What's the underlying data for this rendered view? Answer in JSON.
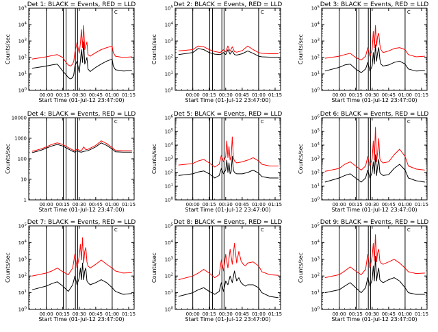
{
  "shared": {
    "x_ticks": [
      "00:00",
      "00:15",
      "00:30",
      "00:45",
      "01:00",
      "01:15"
    ],
    "xlabel": "Start Time (01-Jul-12 23:47:00)",
    "ylabel": "Counts/sec",
    "marker_label": "C",
    "colors": {
      "events": "#000000",
      "lld": "#ff0000",
      "vlines": "#000000"
    }
  },
  "chart_data": [
    {
      "type": "line",
      "title": "Det 1: BLACK = Events, RED = LLD",
      "y_scale": "log",
      "ylim": [
        1,
        100000
      ],
      "y_ticks": [
        {
          "base": "10",
          "exp": "0"
        },
        {
          "base": "10",
          "exp": "1"
        },
        {
          "base": "10",
          "exp": "2"
        },
        {
          "base": "10",
          "exp": "3"
        },
        {
          "base": "10",
          "exp": "4"
        },
        {
          "base": "10",
          "exp": "5"
        }
      ],
      "x_minutes": [
        -13,
        0,
        5,
        10,
        15,
        18,
        20,
        22,
        24,
        25,
        26,
        28,
        30,
        31,
        32,
        33,
        34,
        35,
        36,
        37,
        38,
        40,
        45,
        50,
        55,
        60,
        61,
        63,
        70,
        78
      ],
      "series": [
        {
          "values": [
            22,
            30,
            35,
            40,
            15,
            9,
            6,
            5,
            6,
            9,
            30,
            60,
            12,
            60,
            300,
            50,
            900,
            40,
            60,
            100,
            20,
            14,
            25,
            40,
            60,
            80,
            30,
            18,
            15,
            16
          ]
        },
        {
          "values": [
            80,
            110,
            130,
            150,
            100,
            50,
            35,
            30,
            40,
            60,
            200,
            800,
            180,
            700,
            5000,
            400,
            9000,
            300,
            500,
            900,
            150,
            120,
            200,
            300,
            400,
            500,
            200,
            120,
            100,
            110
          ]
        }
      ]
    },
    {
      "type": "line",
      "title": "Det 2: BLACK = Events, RED = LLD",
      "y_scale": "log",
      "ylim": [
        1,
        100000
      ],
      "y_ticks": [
        {
          "base": "10",
          "exp": "0"
        },
        {
          "base": "10",
          "exp": "1"
        },
        {
          "base": "10",
          "exp": "2"
        },
        {
          "base": "10",
          "exp": "3"
        },
        {
          "base": "10",
          "exp": "4"
        },
        {
          "base": "10",
          "exp": "5"
        }
      ],
      "x_minutes": [
        -13,
        0,
        5,
        10,
        15,
        20,
        25,
        28,
        30,
        32,
        34,
        36,
        38,
        40,
        45,
        50,
        55,
        60,
        63,
        70,
        78
      ],
      "series": [
        {
          "values": [
            150,
            200,
            350,
            300,
            200,
            160,
            150,
            200,
            150,
            300,
            160,
            250,
            150,
            140,
            170,
            250,
            180,
            120,
            110,
            105,
            105
          ]
        },
        {
          "values": [
            250,
            300,
            500,
            450,
            300,
            230,
            200,
            300,
            220,
            500,
            240,
            450,
            230,
            210,
            260,
            500,
            300,
            200,
            180,
            170,
            170
          ]
        }
      ]
    },
    {
      "type": "line",
      "title": "Det 3: BLACK = Events, RED = LLD",
      "y_scale": "log",
      "ylim": [
        1,
        100000
      ],
      "y_ticks": [
        {
          "base": "10",
          "exp": "0"
        },
        {
          "base": "10",
          "exp": "1"
        },
        {
          "base": "10",
          "exp": "2"
        },
        {
          "base": "10",
          "exp": "3"
        },
        {
          "base": "10",
          "exp": "4"
        },
        {
          "base": "10",
          "exp": "5"
        }
      ],
      "x_minutes": [
        -13,
        0,
        5,
        10,
        15,
        20,
        24,
        26,
        28,
        30,
        31,
        32,
        33,
        34,
        35,
        36,
        37,
        38,
        40,
        45,
        50,
        55,
        60,
        63,
        70,
        78
      ],
      "series": [
        {
          "values": [
            15,
            25,
            35,
            40,
            20,
            12,
            20,
            50,
            15,
            30,
            200,
            40,
            600,
            60,
            200,
            400,
            80,
            40,
            30,
            35,
            50,
            60,
            40,
            20,
            15,
            16
          ]
        },
        {
          "values": [
            90,
            120,
            150,
            180,
            100,
            70,
            120,
            400,
            120,
            300,
            4000,
            400,
            9000,
            500,
            2000,
            3000,
            600,
            300,
            200,
            250,
            350,
            400,
            300,
            150,
            110,
            120
          ]
        }
      ]
    },
    {
      "type": "line",
      "title": "Det 4: BLACK = Events, RED = LLD",
      "y_scale": "log",
      "ylim": [
        1,
        10000
      ],
      "y_ticks": [
        {
          "base": "1",
          "exp": ""
        },
        {
          "base": "10",
          "exp": ""
        },
        {
          "base": "100",
          "exp": ""
        },
        {
          "base": "1000",
          "exp": ""
        },
        {
          "base": "10000",
          "exp": ""
        }
      ],
      "x_minutes": [
        -13,
        -5,
        0,
        5,
        10,
        15,
        20,
        24,
        26,
        28,
        30,
        32,
        34,
        36,
        38,
        40,
        45,
        50,
        55,
        60,
        63,
        70,
        78
      ],
      "series": [
        {
          "values": [
            200,
            260,
            330,
            420,
            500,
            420,
            300,
            230,
            210,
            250,
            220,
            210,
            230,
            240,
            250,
            280,
            380,
            600,
            450,
            300,
            220,
            210,
            210
          ]
        },
        {
          "values": [
            230,
            300,
            380,
            500,
            600,
            500,
            350,
            270,
            250,
            300,
            260,
            250,
            380,
            280,
            290,
            330,
            450,
            750,
            550,
            350,
            260,
            250,
            250
          ]
        }
      ]
    },
    {
      "type": "line",
      "title": "Det 5: BLACK = Events, RED = LLD",
      "y_scale": "log",
      "ylim": [
        1,
        1000000
      ],
      "y_ticks": [
        {
          "base": "10",
          "exp": "0"
        },
        {
          "base": "10",
          "exp": "1"
        },
        {
          "base": "10",
          "exp": "2"
        },
        {
          "base": "10",
          "exp": "3"
        },
        {
          "base": "10",
          "exp": "4"
        },
        {
          "base": "10",
          "exp": "5"
        },
        {
          "base": "10",
          "exp": "6"
        }
      ],
      "x_minutes": [
        -13,
        0,
        5,
        10,
        15,
        20,
        24,
        26,
        28,
        30,
        31,
        32,
        33,
        34,
        35,
        36,
        37,
        38,
        40,
        45,
        50,
        55,
        60,
        63,
        70,
        78
      ],
      "series": [
        {
          "values": [
            60,
            80,
            110,
            130,
            80,
            40,
            60,
            200,
            80,
            150,
            800,
            100,
            500,
            80,
            120,
            1500,
            150,
            100,
            80,
            80,
            100,
            150,
            90,
            50,
            40,
            40
          ]
        },
        {
          "values": [
            350,
            450,
            700,
            900,
            500,
            250,
            400,
            1800,
            600,
            1500,
            20000,
            1200,
            8000,
            800,
            1500,
            40000,
            1200,
            700,
            500,
            600,
            800,
            1200,
            700,
            400,
            300,
            300
          ]
        }
      ]
    },
    {
      "type": "line",
      "title": "Det 6: BLACK = Events, RED = LLD",
      "y_scale": "log",
      "ylim": [
        1,
        1000000
      ],
      "y_ticks": [
        {
          "base": "10",
          "exp": "0"
        },
        {
          "base": "10",
          "exp": "1"
        },
        {
          "base": "10",
          "exp": "2"
        },
        {
          "base": "10",
          "exp": "3"
        },
        {
          "base": "10",
          "exp": "4"
        },
        {
          "base": "10",
          "exp": "5"
        },
        {
          "base": "10",
          "exp": "6"
        }
      ],
      "x_minutes": [
        -13,
        0,
        5,
        10,
        15,
        20,
        24,
        26,
        28,
        30,
        31,
        32,
        33,
        34,
        35,
        36,
        37,
        38,
        40,
        45,
        50,
        55,
        60,
        63,
        70,
        78
      ],
      "series": [
        {
          "values": [
            20,
            40,
            60,
            80,
            40,
            20,
            40,
            150,
            40,
            100,
            600,
            80,
            2000,
            60,
            300,
            900,
            100,
            80,
            60,
            70,
            200,
            400,
            150,
            40,
            25,
            20
          ]
        },
        {
          "values": [
            120,
            200,
            400,
            600,
            300,
            150,
            300,
            1500,
            300,
            1000,
            20000,
            800,
            200000,
            600,
            3000,
            30000,
            1000,
            700,
            500,
            600,
            2000,
            5000,
            1500,
            300,
            180,
            150
          ]
        }
      ]
    },
    {
      "type": "line",
      "title": "Det 7: BLACK = Events, RED = LLD",
      "y_scale": "log",
      "ylim": [
        1,
        100000
      ],
      "y_ticks": [
        {
          "base": "10",
          "exp": "0"
        },
        {
          "base": "10",
          "exp": "1"
        },
        {
          "base": "10",
          "exp": "2"
        },
        {
          "base": "10",
          "exp": "3"
        },
        {
          "base": "10",
          "exp": "4"
        },
        {
          "base": "10",
          "exp": "5"
        }
      ],
      "x_minutes": [
        -13,
        0,
        5,
        10,
        15,
        20,
        24,
        26,
        28,
        30,
        31,
        32,
        33,
        34,
        35,
        36,
        37,
        38,
        40,
        45,
        50,
        55,
        60,
        63,
        70,
        78
      ],
      "series": [
        {
          "values": [
            15,
            25,
            35,
            45,
            25,
            12,
            30,
            100,
            30,
            80,
            300,
            60,
            600,
            60,
            200,
            300,
            50,
            40,
            30,
            40,
            60,
            40,
            20,
            12,
            8,
            9
          ]
        },
        {
          "values": [
            100,
            150,
            200,
            300,
            180,
            120,
            300,
            2000,
            300,
            1500,
            8000,
            900,
            20000,
            600,
            3000,
            5000,
            700,
            400,
            300,
            500,
            900,
            500,
            300,
            200,
            150,
            160
          ]
        }
      ]
    },
    {
      "type": "line",
      "title": "Det 8: BLACK = Events, RED = LLD",
      "y_scale": "log",
      "ylim": [
        1,
        100000
      ],
      "y_ticks": [
        {
          "base": "10",
          "exp": "0"
        },
        {
          "base": "10",
          "exp": "1"
        },
        {
          "base": "10",
          "exp": "2"
        },
        {
          "base": "10",
          "exp": "3"
        },
        {
          "base": "10",
          "exp": "4"
        },
        {
          "base": "10",
          "exp": "5"
        }
      ],
      "x_minutes": [
        -13,
        0,
        5,
        10,
        15,
        20,
        24,
        26,
        28,
        30,
        32,
        34,
        36,
        38,
        40,
        42,
        44,
        46,
        48,
        50,
        55,
        60,
        63,
        70,
        78
      ],
      "series": [
        {
          "values": [
            6,
            10,
            15,
            20,
            12,
            8,
            12,
            40,
            12,
            50,
            30,
            100,
            40,
            200,
            50,
            80,
            40,
            30,
            25,
            30,
            30,
            20,
            10,
            6,
            5
          ]
        },
        {
          "values": [
            60,
            100,
            150,
            250,
            150,
            80,
            120,
            900,
            200,
            2000,
            300,
            4000,
            500,
            9000,
            600,
            3000,
            800,
            500,
            400,
            600,
            700,
            400,
            180,
            120,
            110
          ]
        }
      ]
    },
    {
      "type": "line",
      "title": "Det 9: BLACK = Events, RED = LLD",
      "y_scale": "log",
      "ylim": [
        1,
        100000
      ],
      "y_ticks": [
        {
          "base": "10",
          "exp": "0"
        },
        {
          "base": "10",
          "exp": "1"
        },
        {
          "base": "10",
          "exp": "2"
        },
        {
          "base": "10",
          "exp": "3"
        },
        {
          "base": "10",
          "exp": "4"
        },
        {
          "base": "10",
          "exp": "5"
        }
      ],
      "x_minutes": [
        -13,
        0,
        5,
        10,
        15,
        20,
        24,
        26,
        28,
        30,
        31,
        32,
        33,
        34,
        35,
        36,
        37,
        38,
        40,
        45,
        50,
        55,
        60,
        63,
        70,
        78
      ],
      "series": [
        {
          "values": [
            10,
            15,
            25,
            40,
            20,
            10,
            20,
            80,
            25,
            60,
            400,
            50,
            1500,
            50,
            150,
            300,
            60,
            50,
            40,
            60,
            80,
            50,
            20,
            10,
            8,
            8
          ]
        },
        {
          "values": [
            80,
            120,
            200,
            350,
            200,
            120,
            250,
            2000,
            300,
            1500,
            9000,
            800,
            30000,
            700,
            2500,
            4000,
            800,
            600,
            500,
            700,
            1000,
            600,
            300,
            180,
            140,
            150
          ]
        }
      ]
    }
  ]
}
